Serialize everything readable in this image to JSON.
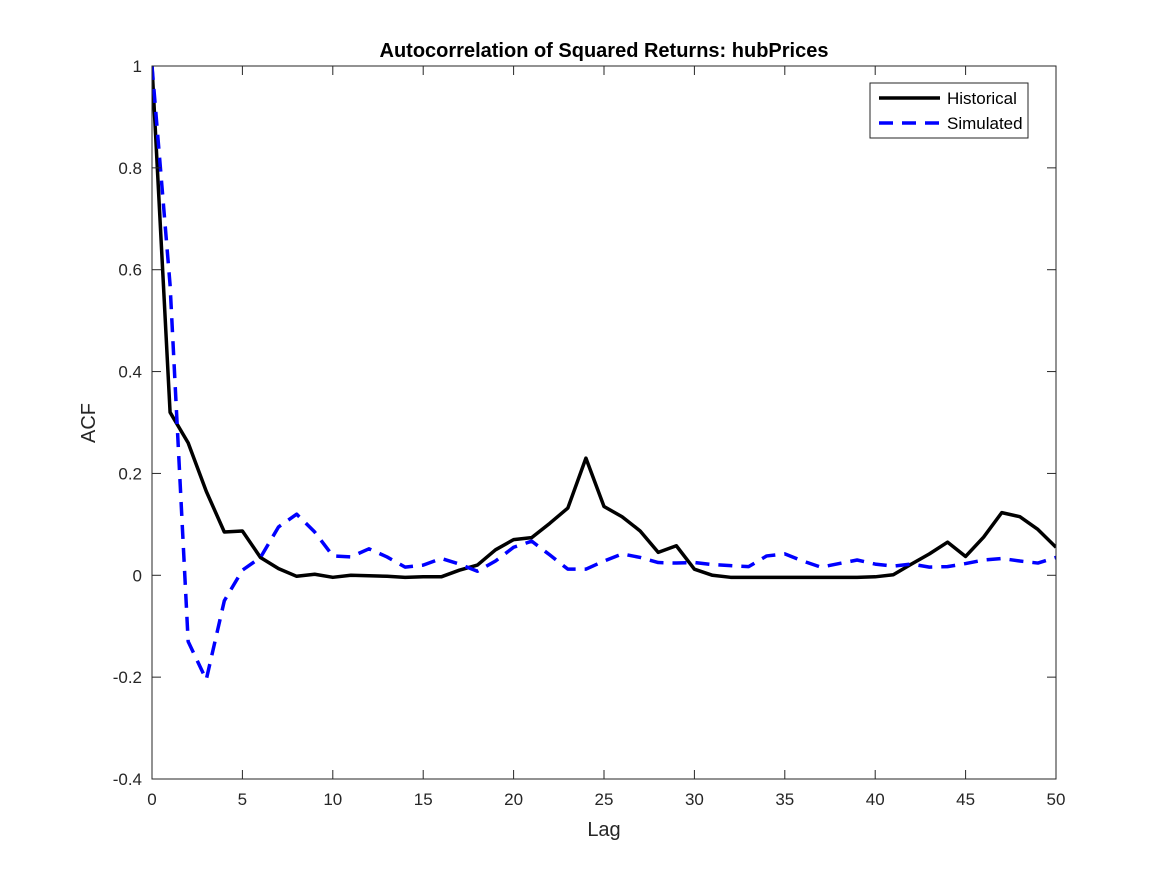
{
  "chart_data": {
    "type": "line",
    "title": "Autocorrelation of Squared Returns: hubPrices",
    "xlabel": "Lag",
    "ylabel": "ACF",
    "xlim": [
      0,
      50
    ],
    "ylim": [
      -0.4,
      1
    ],
    "xticks": [
      0,
      5,
      10,
      15,
      20,
      25,
      30,
      35,
      40,
      45,
      50
    ],
    "yticks": [
      -0.4,
      -0.2,
      0,
      0.2,
      0.4,
      0.6,
      0.8,
      1
    ],
    "xtick_labels": [
      "0",
      "5",
      "10",
      "15",
      "20",
      "25",
      "30",
      "35",
      "40",
      "45",
      "50"
    ],
    "ytick_labels": [
      "-0.4",
      "-0.2",
      "0",
      "0.2",
      "0.4",
      "0.6",
      "0.8",
      "1"
    ],
    "grid": false,
    "legend_position": "top-right",
    "x": [
      0,
      1,
      2,
      3,
      4,
      5,
      6,
      7,
      8,
      9,
      10,
      11,
      12,
      13,
      14,
      15,
      16,
      17,
      18,
      19,
      20,
      21,
      22,
      23,
      24,
      25,
      26,
      27,
      28,
      29,
      30,
      31,
      32,
      33,
      34,
      35,
      36,
      37,
      38,
      39,
      40,
      41,
      42,
      43,
      44,
      45,
      46,
      47,
      48,
      49,
      50
    ],
    "series": [
      {
        "name": "Historical",
        "color": "#000000",
        "dash": "solid",
        "values": [
          1.0,
          0.32,
          0.26,
          0.165,
          0.085,
          0.087,
          0.035,
          0.013,
          -0.002,
          0.002,
          -0.004,
          0.0,
          -0.001,
          -0.002,
          -0.004,
          -0.003,
          -0.003,
          0.01,
          0.02,
          0.05,
          0.07,
          0.074,
          0.102,
          0.132,
          0.23,
          0.135,
          0.115,
          0.087,
          0.045,
          0.058,
          0.012,
          0.0,
          -0.004,
          -0.004,
          -0.004,
          -0.004,
          -0.004,
          -0.004,
          -0.004,
          -0.004,
          -0.003,
          0.001,
          0.022,
          0.042,
          0.065,
          0.037,
          0.075,
          0.123,
          0.115,
          0.09,
          0.055
        ]
      },
      {
        "name": "Simulated",
        "color": "#0000ff",
        "dash": "dashed",
        "values": [
          1.0,
          0.57,
          -0.13,
          -0.205,
          -0.05,
          0.01,
          0.035,
          0.095,
          0.12,
          0.085,
          0.038,
          0.036,
          0.052,
          0.036,
          0.016,
          0.02,
          0.033,
          0.022,
          0.008,
          0.028,
          0.055,
          0.067,
          0.04,
          0.012,
          0.012,
          0.028,
          0.042,
          0.035,
          0.025,
          0.024,
          0.025,
          0.021,
          0.019,
          0.017,
          0.038,
          0.042,
          0.028,
          0.016,
          0.023,
          0.03,
          0.022,
          0.018,
          0.022,
          0.016,
          0.017,
          0.023,
          0.03,
          0.033,
          0.028,
          0.024,
          0.035
        ]
      }
    ]
  }
}
